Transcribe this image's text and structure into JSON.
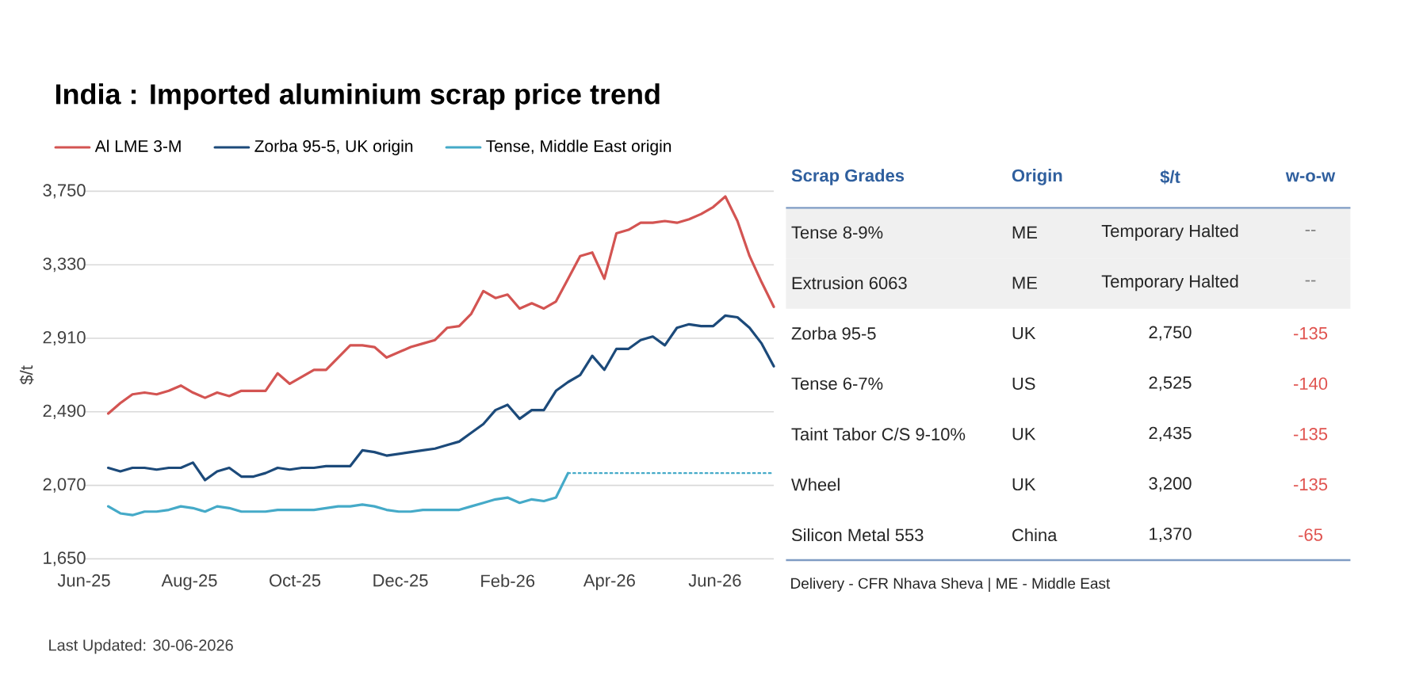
{
  "chart_data": [
    {
      "type": "line",
      "title": "India : Imported aluminium scrap price trend",
      "ylabel": "$/t",
      "x": [
        "2025-06-15",
        "2025-06-22",
        "2025-06-29",
        "2025-07-06",
        "2025-07-13",
        "2025-07-20",
        "2025-07-27",
        "2025-08-03",
        "2025-08-10",
        "2025-08-17",
        "2025-08-24",
        "2025-08-31",
        "2025-09-07",
        "2025-09-14",
        "2025-09-21",
        "2025-09-28",
        "2025-10-05",
        "2025-10-12",
        "2025-10-19",
        "2025-10-26",
        "2025-11-02",
        "2025-11-09",
        "2025-11-16",
        "2025-11-23",
        "2025-11-30",
        "2025-12-07",
        "2025-12-14",
        "2025-12-21",
        "2025-12-28",
        "2026-01-04",
        "2026-01-11",
        "2026-01-18",
        "2026-01-25",
        "2026-02-01",
        "2026-02-08",
        "2026-02-15",
        "2026-02-22",
        "2026-03-01",
        "2026-03-08",
        "2026-03-15",
        "2026-03-22",
        "2026-03-29",
        "2026-04-05",
        "2026-04-12",
        "2026-04-19",
        "2026-04-26",
        "2026-05-03",
        "2026-05-10",
        "2026-05-17",
        "2026-05-24",
        "2026-05-31",
        "2026-06-07",
        "2026-06-14",
        "2026-06-21",
        "2026-06-28",
        "2026-07-05"
      ],
      "series": [
        {
          "name": "Al LME 3-M",
          "color": "#d35452",
          "values": [
            2480,
            2540,
            2590,
            2600,
            2590,
            2610,
            2640,
            2600,
            2570,
            2600,
            2580,
            2610,
            2610,
            2610,
            2710,
            2650,
            2690,
            2730,
            2730,
            2800,
            2870,
            2870,
            2860,
            2800,
            2830,
            2860,
            2880,
            2900,
            2970,
            2980,
            3050,
            3180,
            3140,
            3160,
            3080,
            3110,
            3080,
            3120,
            3250,
            3380,
            3400,
            3250,
            3510,
            3530,
            3570,
            3570,
            3580,
            3570,
            3590,
            3620,
            3660,
            3720,
            3580,
            3380,
            3230,
            3090
          ]
        },
        {
          "name": "Zorba 95-5, UK origin",
          "color": "#1c4a7a",
          "values": [
            2170,
            2150,
            2170,
            2170,
            2160,
            2170,
            2170,
            2200,
            2100,
            2150,
            2170,
            2120,
            2120,
            2140,
            2170,
            2160,
            2170,
            2170,
            2180,
            2180,
            2180,
            2270,
            2260,
            2240,
            2250,
            2260,
            2270,
            2280,
            2300,
            2320,
            2370,
            2420,
            2500,
            2530,
            2450,
            2500,
            2500,
            2610,
            2660,
            2700,
            2810,
            2730,
            2850,
            2850,
            2900,
            2920,
            2870,
            2970,
            2990,
            2980,
            2980,
            3040,
            3030,
            2970,
            2880,
            2750
          ]
        },
        {
          "name": "Tense, Middle East origin",
          "color": "#45aac8",
          "values": [
            1950,
            1910,
            1900,
            1920,
            1920,
            1930,
            1950,
            1940,
            1920,
            1950,
            1940,
            1920,
            1920,
            1920,
            1930,
            1930,
            1930,
            1930,
            1940,
            1950,
            1950,
            1960,
            1950,
            1930,
            1920,
            1920,
            1930,
            1930,
            1930,
            1930,
            1950,
            1970,
            1990,
            2000,
            1970,
            1990,
            1980,
            2000,
            2140,
            null,
            null,
            null,
            null,
            null,
            null,
            null,
            null,
            null,
            null,
            null,
            null,
            null,
            null,
            null,
            null,
            null
          ]
        },
        {
          "color": "#45aac8",
          "line_style": "dotted",
          "x": [
            "2026-03-08",
            "2026-07-05"
          ],
          "values": [
            2140,
            2140
          ]
        }
      ],
      "xlim": [
        "2025-06-01",
        "2026-07-05"
      ],
      "xticks": [
        {
          "value": "2025-06-01",
          "label": "Jun-25"
        },
        {
          "value": "2025-08-01",
          "label": "Aug-25"
        },
        {
          "value": "2025-10-01",
          "label": "Oct-25"
        },
        {
          "value": "2025-12-01",
          "label": "Dec-25"
        },
        {
          "value": "2026-02-01",
          "label": "Feb-26"
        },
        {
          "value": "2026-04-01",
          "label": "Apr-26"
        },
        {
          "value": "2026-06-01",
          "label": "Jun-26"
        }
      ],
      "ylim": [
        1650,
        3750
      ],
      "yticks": [
        {
          "value": 1650,
          "label": "1,650"
        },
        {
          "value": 2070,
          "label": "2,070"
        },
        {
          "value": 2490,
          "label": "2,490"
        },
        {
          "value": 2910,
          "label": "2,910"
        },
        {
          "value": 3330,
          "label": "3,330"
        },
        {
          "value": 3750,
          "label": "3,750"
        }
      ],
      "grid": "y",
      "legend": "top left",
      "annotations": [
        "Last Updated: 30-06-2026"
      ]
    },
    {
      "type": "other",
      "ylabel": "Scrap Grades",
      "y2label": "Origin",
      "categories": [
        "Tense 8-9%",
        "Extrusion 6063",
        "Zorba 95-5",
        "Tense 6-7%",
        "Taint Tabor C/S 9-10%",
        "Wheel",
        "Silicon Metal 553"
      ],
      "y2_categories": [
        "ME",
        "ME",
        "UK",
        "US",
        "UK",
        "UK",
        "China"
      ],
      "series": [
        {
          "name": "$/t",
          "values": [
            null,
            null,
            2750,
            2525,
            2435,
            3200,
            1370
          ],
          "value_labels": [
            "Temporary Halted",
            "Temporary Halted",
            "2,750",
            "2,525",
            "2,435",
            "3,200",
            "1,370"
          ]
        },
        {
          "name": "w-o-w",
          "colors": [
            "#7f7f7f",
            "#7f7f7f",
            "#e0534f",
            "#e0534f",
            "#e0534f",
            "#e0534f",
            "#e0534f"
          ],
          "values": [
            null,
            null,
            -135,
            -140,
            -135,
            -135,
            -65
          ],
          "value_labels": [
            "--",
            "--",
            "-135",
            "-140",
            "-135",
            "-135",
            "-65"
          ]
        }
      ],
      "annotations": [
        "Delivery - CFR Nhava Sheva | ME - Middle East"
      ]
    }
  ]
}
